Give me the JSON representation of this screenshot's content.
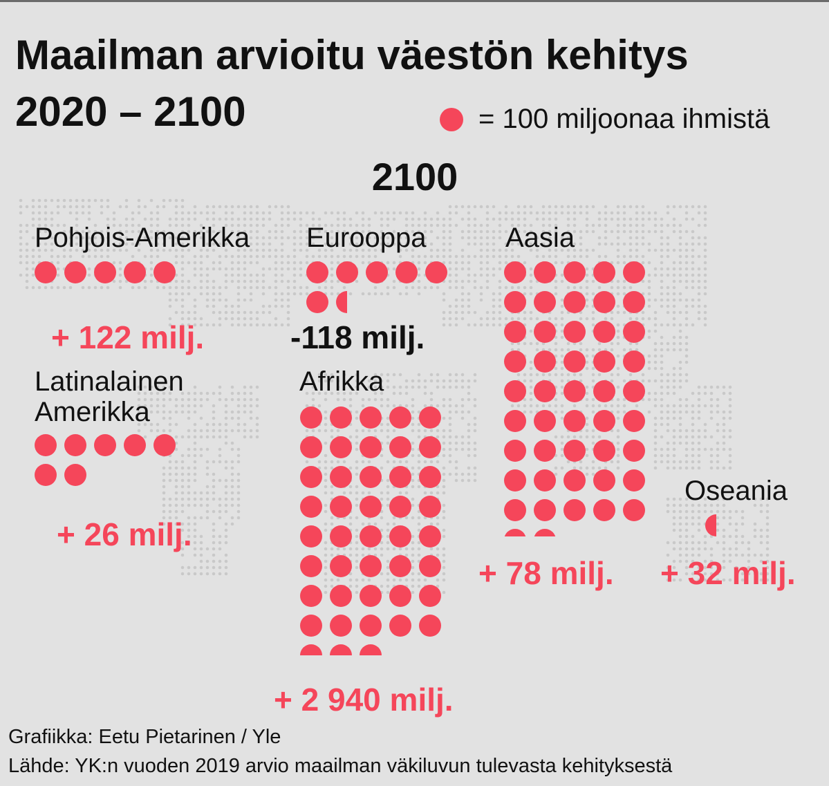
{
  "title": {
    "line1": "Maailman arvioitu väestön kehitys",
    "line2": "2020 – 2100"
  },
  "legend": {
    "text": "= 100 miljoonaa ihmistä",
    "unit_millions": 100
  },
  "year_label": "2100",
  "colors": {
    "dot": "#f5465a",
    "positive": "#f5465a",
    "negative": "#111111",
    "background": "#e2e2e2",
    "map": "#c9c9c9"
  },
  "chart_data": {
    "type": "pictogram",
    "unit": "1 dot = 100 million people",
    "year": "2100",
    "regions": [
      {
        "name": "Pohjois-Amerikka",
        "dots_2100": 5,
        "change_label": "+ 122 milj.",
        "change_millions": 122
      },
      {
        "name": "Eurooppa",
        "dots_2100": 6.5,
        "change_label": "-118  milj.",
        "change_millions": -118
      },
      {
        "name": "Aasia",
        "dots_2100": 47,
        "change_label": "+ 78 milj.",
        "change_millions": 78
      },
      {
        "name": "Latinalainen Amerikka",
        "dots_2100": 7,
        "change_label": "+ 26 milj.",
        "change_millions": 26
      },
      {
        "name": "Afrikka",
        "dots_2100": 43,
        "change_label": "+ 2 940 milj.",
        "change_millions": 2940
      },
      {
        "name": "Oseania",
        "dots_2100": 0.5,
        "change_label": "+ 32 milj.",
        "change_millions": 32
      }
    ]
  },
  "footer": {
    "credit": "Grafiikka: Eetu Pietarinen / Yle",
    "source": "Lähde: YK:n vuoden 2019 arvio maailman väkiluvun tulevasta kehityksestä"
  }
}
